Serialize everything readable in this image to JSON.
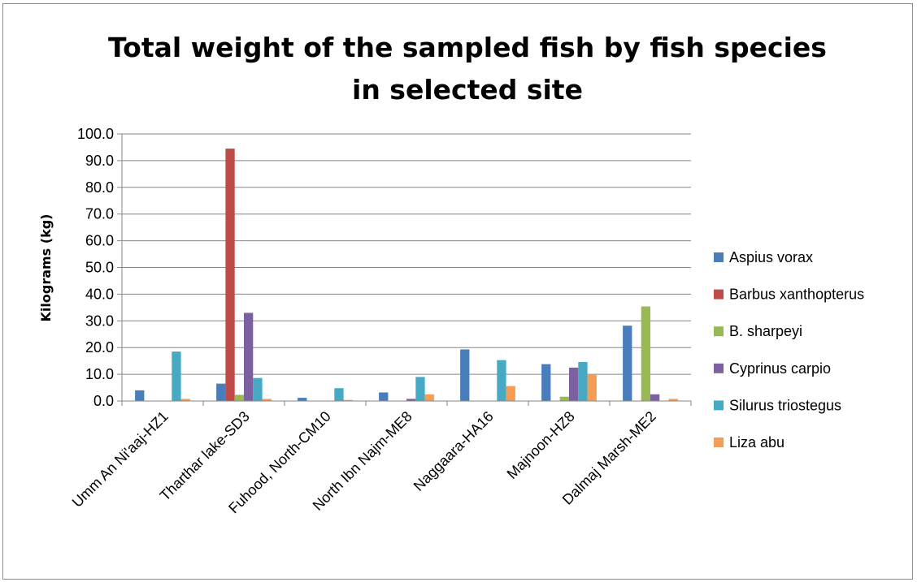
{
  "chart_data": {
    "type": "bar",
    "title_lines": [
      "Total weight of the sampled fish by fish species",
      "in selected site"
    ],
    "xlabel": "",
    "ylabel": "Kilograms (kg)",
    "ylim": [
      0,
      100
    ],
    "yticks": [
      "0.0",
      "10.0",
      "20.0",
      "30.0",
      "40.0",
      "50.0",
      "60.0",
      "70.0",
      "80.0",
      "90.0",
      "100.0"
    ],
    "grid": true,
    "legend_position": "right",
    "categories": [
      "Umm An Ni'aaj-HZ1",
      "Tharthar lake-SD3",
      "Fuhood, North-CM10",
      "North Ibn Najm-ME8",
      "Naggaara-HA16",
      "Majnoon-HZ8",
      "Dalmaj Marsh-ME2"
    ],
    "series": [
      {
        "name": "Aspius vorax",
        "color": "#4a7ebb",
        "values": [
          4.0,
          6.5,
          1.2,
          3.2,
          19.3,
          13.8,
          28.2
        ]
      },
      {
        "name": "Barbus xanthopterus",
        "color": "#be4b48",
        "values": [
          0,
          94.5,
          0,
          0,
          0,
          0,
          0
        ]
      },
      {
        "name": "B. sharpeyi",
        "color": "#98b954",
        "values": [
          0,
          2.3,
          0,
          0,
          0,
          1.6,
          35.4
        ]
      },
      {
        "name": "Cyprinus carpio",
        "color": "#7d60a0",
        "values": [
          0,
          33.0,
          0,
          0.8,
          0,
          12.5,
          2.5
        ]
      },
      {
        "name": "Silurus triostegus",
        "color": "#46aac4",
        "values": [
          18.5,
          8.6,
          4.8,
          9.0,
          15.3,
          14.6,
          0
        ]
      },
      {
        "name": "Liza abu",
        "color": "#f59d56",
        "values": [
          0.8,
          0.8,
          0.4,
          2.5,
          5.6,
          10.0,
          0.8
        ]
      }
    ]
  }
}
